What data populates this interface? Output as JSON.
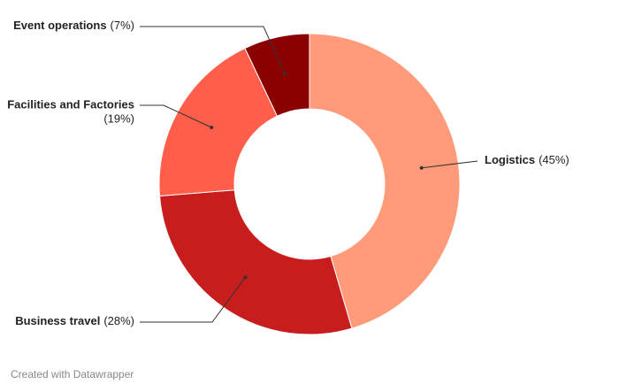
{
  "chart_data": {
    "type": "donut",
    "categories": [
      "Logistics",
      "Business travel",
      "Facilities and Factories",
      "Event operations"
    ],
    "values": [
      45,
      28,
      19,
      7
    ],
    "value_labels": [
      "(45%)",
      "(28%)",
      "(19%)",
      "(7%)"
    ],
    "colors": [
      "#ff9b7a",
      "#c71e1d",
      "#ff5f4a",
      "#8b0000"
    ],
    "footer": "Created with Datawrapper"
  }
}
